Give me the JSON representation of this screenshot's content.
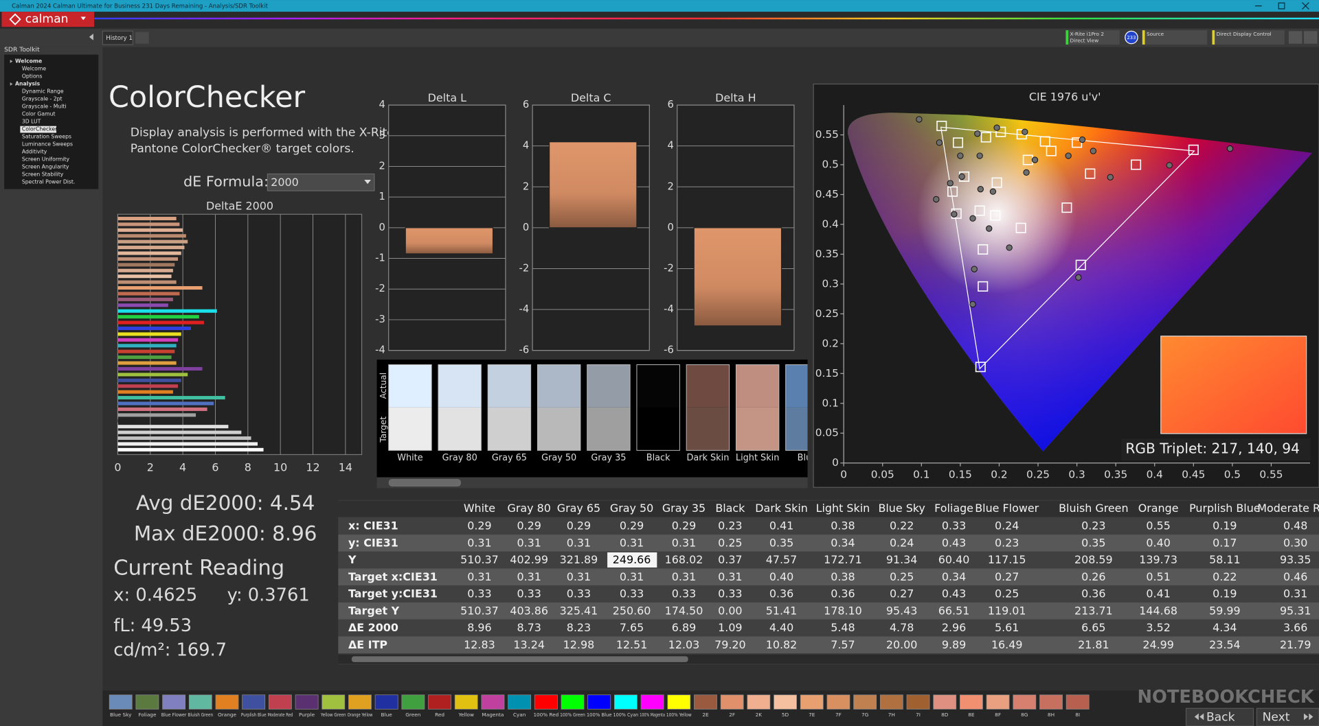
{
  "window": {
    "title": "Calman 2024 Calman Ultimate for Business 231 Days Remaining - Analysis/SDR Toolkit",
    "logo": "calman"
  },
  "toolbar": {
    "tab": "History 1",
    "meter": "X-Rite i1Pro 2",
    "meter_mode": "Direct View",
    "meter_badge": "233",
    "source": "Source",
    "display": "Direct Display Control"
  },
  "sidebar": {
    "title": "SDR Toolkit",
    "selected_index": 9,
    "items": [
      {
        "label": "Welcome",
        "group": true
      },
      {
        "label": "Welcome"
      },
      {
        "label": "Options"
      },
      {
        "label": "Analysis",
        "group": true
      },
      {
        "label": "Dynamic Range"
      },
      {
        "label": "Grayscale - 2pt"
      },
      {
        "label": "Grayscale - Multi"
      },
      {
        "label": "Color Gamut"
      },
      {
        "label": "3D LUT"
      },
      {
        "label": "ColorChecker"
      },
      {
        "label": "Saturation Sweeps"
      },
      {
        "label": "Luminance Sweeps"
      },
      {
        "label": "Additivity"
      },
      {
        "label": "Screen Uniformity"
      },
      {
        "label": "Screen Angularity"
      },
      {
        "label": "Screen Stability"
      },
      {
        "label": "Spectral Power Dist."
      }
    ]
  },
  "heading": "ColorChecker",
  "description": [
    "Display analysis is performed with the X-Rite/",
    "Pantone ColorChecker® target colors."
  ],
  "de_formula": {
    "label": "dE Formula:",
    "value": "2000"
  },
  "deltae_chart": {
    "type": "bar",
    "title": "DeltaE 2000",
    "xlim": [
      0,
      15
    ],
    "xticks": [
      0,
      2,
      4,
      6,
      8,
      10,
      12,
      14
    ],
    "grid": true,
    "values": [
      3.6,
      3.8,
      4.0,
      4.2,
      4.3,
      4.1,
      3.9,
      3.7,
      3.5,
      3.4,
      3.3,
      3.6,
      5.2,
      3.8,
      3.4,
      3.1,
      6.1,
      5.0,
      5.3,
      4.5,
      3.9,
      3.7,
      3.6,
      3.5,
      3.3,
      3.6,
      5.2,
      4.3,
      3.9,
      3.7,
      3.4,
      6.6,
      5.9,
      5.5,
      4.8,
      1.1,
      6.8,
      7.6,
      8.2,
      8.6,
      8.96
    ],
    "colors": [
      "#d8a283",
      "#c9957a",
      "#e0b094",
      "#b98a6d",
      "#caa085",
      "#d6a98c",
      "#e2b79b",
      "#c2937a",
      "#a07860",
      "#d8aa90",
      "#e6bfa5",
      "#bf8f74",
      "#e8a070",
      "#c06a50",
      "#9c5a7a",
      "#8a4ab0",
      "#19e0e8",
      "#20d040",
      "#e02020",
      "#3040e0",
      "#e8e020",
      "#d040c0",
      "#30b0c0",
      "#c84030",
      "#50a040",
      "#e0a040",
      "#8040a0",
      "#a0c040",
      "#4050a0",
      "#c04050",
      "#e08020",
      "#40c0a0",
      "#5070c0",
      "#d07080",
      "#a0a0a0",
      "#222222",
      "#e0e0e0",
      "#d0d0d0",
      "#c0c0c0",
      "#f0f0f0",
      "#ffffff"
    ]
  },
  "delta_charts": [
    {
      "type": "bar",
      "title": "Delta L",
      "ylim": [
        -4,
        4
      ],
      "yticks": [
        -4,
        -3,
        -2,
        -1,
        0,
        1,
        2,
        3,
        4
      ],
      "value": -0.85
    },
    {
      "type": "bar",
      "title": "Delta C",
      "ylim": [
        -6,
        6
      ],
      "yticks": [
        -6,
        -4,
        -2,
        0,
        2,
        4,
        6
      ],
      "value": 4.2
    },
    {
      "type": "bar",
      "title": "Delta H",
      "ylim": [
        -6,
        6
      ],
      "yticks": [
        -6,
        -4,
        -2,
        0,
        2,
        4,
        6
      ],
      "value": -4.8
    }
  ],
  "swatches": {
    "actual_label": "Actual",
    "target_label": "Target",
    "items": [
      {
        "name": "White",
        "actual": "#e0efff",
        "target": "#ececec"
      },
      {
        "name": "Gray 80",
        "actual": "#d6e4f4",
        "target": "#e2e2e2"
      },
      {
        "name": "Gray 65",
        "actual": "#c2d0e0",
        "target": "#cfcfcf"
      },
      {
        "name": "Gray 50",
        "actual": "#acb8c8",
        "target": "#b9b9b9"
      },
      {
        "name": "Gray 35",
        "actual": "#949ca8",
        "target": "#9f9f9f"
      },
      {
        "name": "Black",
        "actual": "#050505",
        "target": "#000000"
      },
      {
        "name": "Dark Skin",
        "actual": "#6e4a40",
        "target": "#6a4c42"
      },
      {
        "name": "Light Skin",
        "actual": "#c08e80",
        "target": "#c49484"
      },
      {
        "name": "Blue",
        "actual": "#5a80b0",
        "target": "#5e7ca0"
      }
    ]
  },
  "summary": {
    "avg": "Avg dE2000: 4.54",
    "max": "Max dE2000: 8.96"
  },
  "current_reading": {
    "title": "Current Reading",
    "x": "x: 0.4625",
    "y": "y: 0.3761",
    "fl": "fL: 49.53",
    "cdm2": "cd/m²: 169.7"
  },
  "cie_chart": {
    "type": "scatter",
    "title": "CIE 1976 u'v'",
    "xlim": [
      0,
      0.6
    ],
    "ylim": [
      0,
      0.6
    ],
    "xticks": [
      0,
      0.05,
      0.1,
      0.15,
      0.2,
      0.25,
      0.3,
      0.35,
      0.4,
      0.45,
      0.5,
      0.55
    ],
    "yticks": [
      0,
      0.05,
      0.1,
      0.15,
      0.2,
      0.25,
      0.3,
      0.35,
      0.4,
      0.45,
      0.5,
      0.55
    ],
    "gamut": {
      "color": "#ffffff",
      "x": [
        0.451,
        0.125,
        0.175
      ],
      "y": [
        0.523,
        0.563,
        0.158
      ]
    },
    "series": [
      {
        "marker": "square",
        "color": "#ffffff",
        "x": [
          0.126,
          0.147,
          0.183,
          0.202,
          0.229,
          0.259,
          0.3,
          0.155,
          0.14,
          0.197,
          0.145,
          0.175,
          0.195,
          0.228,
          0.287,
          0.317,
          0.376,
          0.45,
          0.179,
          0.179,
          0.305,
          0.176,
          0.237,
          0.267
        ],
        "y": [
          0.565,
          0.537,
          0.546,
          0.555,
          0.551,
          0.539,
          0.537,
          0.48,
          0.455,
          0.47,
          0.418,
          0.423,
          0.415,
          0.394,
          0.428,
          0.485,
          0.5,
          0.525,
          0.358,
          0.296,
          0.332,
          0.161,
          0.508,
          0.523
        ]
      },
      {
        "marker": "circle",
        "color": "#6e6e6e",
        "x": [
          0.097,
          0.123,
          0.172,
          0.197,
          0.233,
          0.15,
          0.175,
          0.137,
          0.152,
          0.176,
          0.192,
          0.119,
          0.142,
          0.166,
          0.187,
          0.213,
          0.168,
          0.166,
          0.302,
          0.289,
          0.321,
          0.343,
          0.419,
          0.497,
          0.307,
          0.246,
          0.235
        ],
        "y": [
          0.576,
          0.537,
          0.552,
          0.562,
          0.555,
          0.515,
          0.515,
          0.469,
          0.48,
          0.459,
          0.455,
          0.442,
          0.417,
          0.41,
          0.393,
          0.361,
          0.325,
          0.266,
          0.311,
          0.515,
          0.523,
          0.479,
          0.499,
          0.527,
          0.542,
          0.508,
          0.487
        ]
      }
    ]
  },
  "rgb_triplet": "RGB Triplet: 217, 140, 94",
  "table": {
    "selected_cell": [
      2,
      4
    ],
    "header": [
      "White",
      "Gray 80",
      "Gray 65",
      "Gray 50",
      "Gray 35",
      "Black",
      "Dark Skin",
      "Light Skin",
      "Blue Sky",
      "Foliage",
      "Blue Flower",
      "Bluish Green",
      "Orange",
      "Purplish Blue",
      "Moderate Red"
    ],
    "rows": [
      [
        "x: CIE31",
        "0.29",
        "0.29",
        "0.29",
        "0.29",
        "0.29",
        "0.23",
        "0.41",
        "0.38",
        "0.22",
        "0.33",
        "0.24",
        "0.23",
        "0.55",
        "0.19",
        "0.48"
      ],
      [
        "y: CIE31",
        "0.31",
        "0.31",
        "0.31",
        "0.31",
        "0.31",
        "0.25",
        "0.35",
        "0.34",
        "0.24",
        "0.43",
        "0.23",
        "0.35",
        "0.40",
        "0.17",
        "0.30"
      ],
      [
        "Y",
        "510.37",
        "402.99",
        "321.89",
        "249.66",
        "168.02",
        "0.37",
        "47.57",
        "172.71",
        "91.34",
        "60.40",
        "117.15",
        "208.59",
        "139.73",
        "58.11",
        "93.35"
      ],
      [
        "Target x:CIE31",
        "0.31",
        "0.31",
        "0.31",
        "0.31",
        "0.31",
        "0.31",
        "0.40",
        "0.38",
        "0.25",
        "0.34",
        "0.27",
        "0.26",
        "0.51",
        "0.22",
        "0.46"
      ],
      [
        "Target y:CIE31",
        "0.33",
        "0.33",
        "0.33",
        "0.33",
        "0.33",
        "0.33",
        "0.36",
        "0.36",
        "0.27",
        "0.43",
        "0.25",
        "0.36",
        "0.41",
        "0.19",
        "0.31"
      ],
      [
        "Target Y",
        "510.37",
        "403.86",
        "325.41",
        "250.60",
        "174.50",
        "0.00",
        "51.41",
        "178.10",
        "95.43",
        "66.51",
        "119.01",
        "213.71",
        "144.68",
        "59.99",
        "95.31"
      ],
      [
        "ΔE 2000",
        "8.96",
        "8.73",
        "8.23",
        "7.65",
        "6.89",
        "1.09",
        "4.40",
        "5.48",
        "4.78",
        "2.96",
        "5.61",
        "6.65",
        "3.52",
        "4.34",
        "3.66"
      ],
      [
        "ΔE ITP",
        "12.83",
        "13.24",
        "12.98",
        "12.51",
        "12.03",
        "79.20",
        "10.82",
        "7.57",
        "20.00",
        "9.89",
        "16.49",
        "21.81",
        "24.99",
        "23.54",
        "21.79"
      ]
    ]
  },
  "patches": {
    "back": "Back",
    "next": "Next",
    "items": [
      {
        "name": "Blue Sky",
        "color": "#6a8ab8"
      },
      {
        "name": "Foliage",
        "color": "#5a7a40"
      },
      {
        "name": "Blue Flower",
        "color": "#8080c0"
      },
      {
        "name": "Bluish Green",
        "color": "#60b8a0"
      },
      {
        "name": "Orange",
        "color": "#e08020"
      },
      {
        "name": "Purplish Blue",
        "color": "#4050a0"
      },
      {
        "name": "Moderate Red",
        "color": "#c04050"
      },
      {
        "name": "Purple",
        "color": "#5a3070"
      },
      {
        "name": "Yellow Green",
        "color": "#a0c040"
      },
      {
        "name": "Orange Yellow",
        "color": "#e0a020"
      },
      {
        "name": "Blue",
        "color": "#2030a0"
      },
      {
        "name": "Green",
        "color": "#40a040"
      },
      {
        "name": "Red",
        "color": "#b02020"
      },
      {
        "name": "Yellow",
        "color": "#e0c010"
      },
      {
        "name": "Magenta",
        "color": "#c040a0"
      },
      {
        "name": "Cyan",
        "color": "#0090b0"
      },
      {
        "name": "100% Red",
        "color": "#ff0000"
      },
      {
        "name": "100% Green",
        "color": "#00ff00"
      },
      {
        "name": "100% Blue",
        "color": "#0000ff"
      },
      {
        "name": "100% Cyan",
        "color": "#00ffff"
      },
      {
        "name": "100% Magenta",
        "color": "#ff00ff"
      },
      {
        "name": "100% Yellow",
        "color": "#ffff00"
      },
      {
        "name": "2E",
        "color": "#9a5a40"
      },
      {
        "name": "2F",
        "color": "#e0906a"
      },
      {
        "name": "2K",
        "color": "#f0b090"
      },
      {
        "name": "5D",
        "color": "#f4c0a0"
      },
      {
        "name": "7E",
        "color": "#e8a070"
      },
      {
        "name": "7F",
        "color": "#d89060"
      },
      {
        "name": "7G",
        "color": "#c08050"
      },
      {
        "name": "7H",
        "color": "#b07040"
      },
      {
        "name": "7I",
        "color": "#a06030"
      },
      {
        "name": "8D",
        "color": "#e09080"
      },
      {
        "name": "8E",
        "color": "#f09070"
      },
      {
        "name": "8F",
        "color": "#e8a080"
      },
      {
        "name": "8G",
        "color": "#d88070"
      },
      {
        "name": "8H",
        "color": "#c87060"
      },
      {
        "name": "8I",
        "color": "#b86050"
      }
    ]
  },
  "watermark": "NOTEBOOKCHECK"
}
